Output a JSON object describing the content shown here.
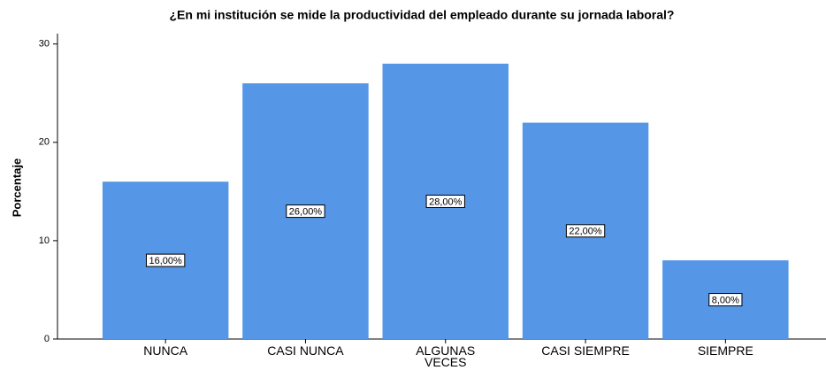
{
  "chart_data": {
    "type": "bar",
    "title": "¿En mi institución se mide la productividad del empleado durante su jornada laboral?",
    "y_label": "Porcentaje",
    "categories": [
      "NUNCA",
      "CASI NUNCA",
      "ALGUNAS VECES",
      "CASI SIEMPRE",
      "SIEMPRE"
    ],
    "values": [
      16,
      26,
      28,
      22,
      8
    ],
    "value_labels": [
      "16,00%",
      "26,00%",
      "28,00%",
      "22,00%",
      "8,00%"
    ],
    "color": "#5596e6",
    "ylim": [
      0,
      31
    ],
    "yticks": [
      0,
      10,
      20,
      30
    ],
    "grid": false
  }
}
